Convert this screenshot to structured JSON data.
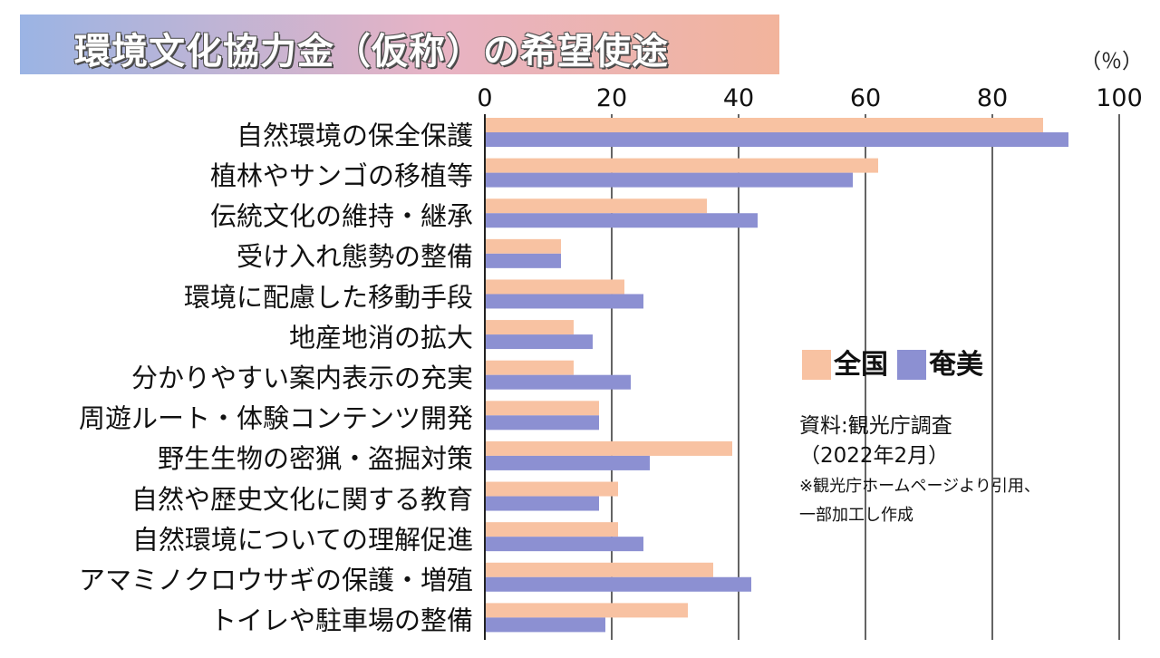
{
  "title": "環境文化協力金（仮称）の希望使途",
  "unit": "（％）",
  "legend": {
    "national": "全国",
    "amami": "奄美"
  },
  "source": {
    "line1": "資料:観光庁調査",
    "line2": "（2022年2月）",
    "line3": "※観光庁ホームページより引用、",
    "line4": "一部加工し作成"
  },
  "colors": {
    "national": "#f8c2a2",
    "amami": "#8c90d2",
    "axis": "#222222"
  },
  "chart_data": {
    "type": "bar",
    "orientation": "horizontal",
    "title": "環境文化協力金（仮称）の希望使途",
    "unit": "％",
    "xlim": [
      0,
      100
    ],
    "ticks": [
      0,
      20,
      40,
      60,
      80,
      100
    ],
    "grid": true,
    "legend_position": "right-middle",
    "categories": [
      "自然環境の保全保護",
      "植林やサンゴの移植等",
      "伝統文化の維持・継承",
      "受け入れ態勢の整備",
      "環境に配慮した移動手段",
      "地産地消の拡大",
      "分かりやすい案内表示の充実",
      "周遊ルート・体験コンテンツ開発",
      "野生生物の密猟・盗掘対策",
      "自然や歴史文化に関する教育",
      "自然環境についての理解促進",
      "アマミノクロウサギの保護・増殖",
      "トイレや駐車場の整備"
    ],
    "series": [
      {
        "name": "全国",
        "values": [
          88,
          62,
          35,
          12,
          22,
          14,
          14,
          18,
          39,
          21,
          21,
          36,
          32
        ]
      },
      {
        "name": "奄美",
        "values": [
          92,
          58,
          43,
          12,
          25,
          17,
          23,
          18,
          26,
          18,
          25,
          42,
          19
        ]
      }
    ]
  }
}
